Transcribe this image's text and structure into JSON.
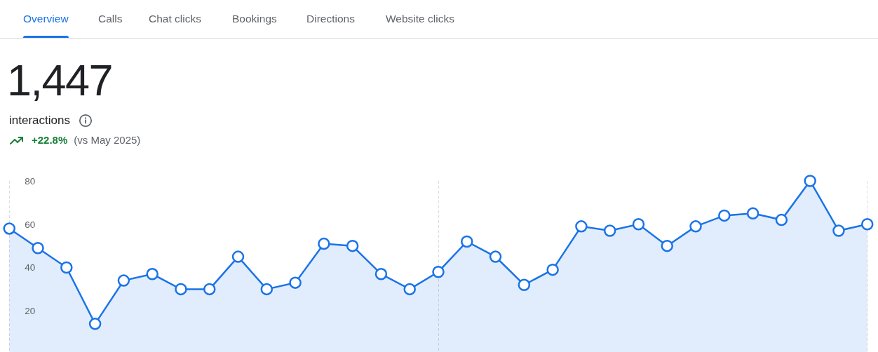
{
  "chart_data": {
    "type": "area",
    "title": "1,447",
    "subtitle": "interactions",
    "annotations": [
      "Overview",
      "Calls",
      "Chat clicks",
      "Bookings",
      "Directions",
      "Website clicks",
      "+22.8%",
      "(vs May 2025)"
    ],
    "categories": [
      null,
      null,
      null,
      null,
      null,
      null,
      null,
      null,
      null,
      null,
      null,
      null,
      null,
      null,
      null,
      null,
      null,
      null,
      null,
      null,
      null,
      null,
      null,
      null,
      null,
      null,
      null,
      null,
      null,
      null,
      null
    ],
    "values": [
      58,
      49,
      40,
      14,
      34,
      37,
      30,
      30,
      45,
      30,
      33,
      51,
      50,
      37,
      30,
      38,
      52,
      45,
      32,
      39,
      59,
      57,
      60,
      50,
      59,
      64,
      65,
      62,
      80,
      57,
      60
    ],
    "color": "#1a73e8",
    "marker": "circle",
    "line_style": "solid",
    "ylim": [
      1,
      80
    ],
    "yticks": [
      20,
      40,
      60,
      80
    ],
    "tick_labels": "y",
    "grid": "x"
  }
}
